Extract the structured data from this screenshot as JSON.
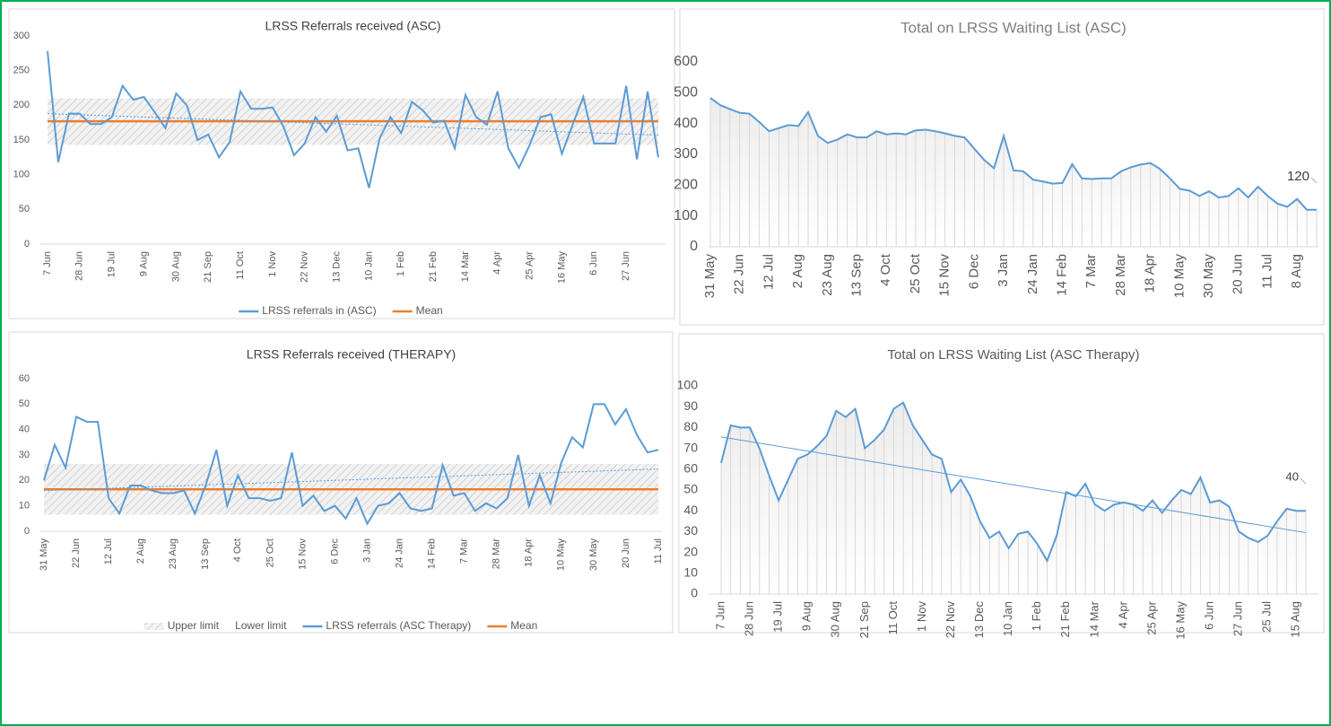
{
  "chart_data": [
    {
      "type": "line",
      "title": "LRSS Referrals received (ASC)",
      "categories": [
        "7 Jun",
        null,
        null,
        "28 Jun",
        null,
        null,
        "19 Jul",
        null,
        null,
        "9 Aug",
        null,
        null,
        "30 Aug",
        null,
        null,
        "21 Sep",
        null,
        null,
        "11 Oct",
        null,
        null,
        "1 Nov",
        null,
        null,
        "22 Nov",
        null,
        null,
        "13 Dec",
        null,
        null,
        "10 Jan",
        null,
        null,
        "1 Feb",
        null,
        null,
        "21 Feb",
        null,
        null,
        "14 Mar",
        null,
        null,
        "4 Apr",
        null,
        null,
        "25 Apr",
        null,
        null,
        "16 May",
        null,
        null,
        "6 Jun",
        null,
        null,
        "27 Jun",
        null,
        null,
        null
      ],
      "series": [
        {
          "name": "LRSS referrals in (ASC)",
          "color": "#5b9bd5",
          "values": [
            278,
            118,
            188,
            188,
            173,
            173,
            183,
            228,
            208,
            212,
            190,
            167,
            217,
            200,
            150,
            158,
            125,
            147,
            220,
            195,
            195,
            197,
            170,
            128,
            145,
            183,
            162,
            185,
            135,
            138,
            81,
            153,
            183,
            160,
            205,
            193,
            175,
            178,
            138,
            215,
            183,
            172,
            220,
            138,
            110,
            143,
            183,
            187,
            130,
            172,
            212,
            145,
            145,
            145,
            228,
            122,
            220,
            125
          ]
        }
      ],
      "mean": {
        "name": "Mean",
        "color": "#ed7d31",
        "value": 177
      },
      "band": [
        143,
        210
      ],
      "trendline": [
        188,
        157
      ],
      "trendline_style": "dotted",
      "ylim": [
        0,
        300
      ],
      "yticks": [
        0,
        50,
        100,
        150,
        200,
        250,
        300
      ],
      "legend": "bottom"
    },
    {
      "type": "line",
      "title": "Total on LRSS Waiting List (ASC)",
      "categories": [
        "31 May",
        null,
        null,
        "22 Jun",
        null,
        null,
        "12 Jul",
        null,
        null,
        "2 Aug",
        null,
        null,
        "23 Aug",
        null,
        null,
        "13 Sep",
        null,
        null,
        "4 Oct",
        null,
        null,
        "25 Oct",
        null,
        null,
        "15 Nov",
        null,
        null,
        "6 Dec",
        null,
        null,
        "3 Jan",
        null,
        null,
        "24 Jan",
        null,
        null,
        "14 Feb",
        null,
        null,
        "7 Mar",
        null,
        null,
        "28 Mar",
        null,
        null,
        "18 Apr",
        null,
        null,
        "10 May",
        null,
        null,
        "30 May",
        null,
        null,
        "20 Jun",
        null,
        null,
        "11 Jul",
        null,
        null,
        "8 Aug",
        null,
        null
      ],
      "series": [
        {
          "name": "Total on LRSS Waiting List (ASC)",
          "color": "#5b9bd5",
          "values": [
            483,
            460,
            447,
            435,
            432,
            405,
            375,
            385,
            395,
            392,
            437,
            360,
            337,
            348,
            365,
            355,
            355,
            375,
            365,
            368,
            365,
            378,
            380,
            375,
            368,
            360,
            355,
            318,
            282,
            255,
            360,
            248,
            245,
            218,
            212,
            205,
            207,
            268,
            222,
            220,
            222,
            222,
            245,
            258,
            267,
            272,
            252,
            222,
            188,
            182,
            165,
            180,
            160,
            165,
            190,
            160,
            195,
            165,
            140,
            130,
            155,
            120,
            120
          ]
        }
      ],
      "area": true,
      "data_label": "last",
      "ylim": [
        0,
        600
      ],
      "yticks": [
        0,
        100,
        200,
        300,
        400,
        500,
        600
      ]
    },
    {
      "type": "line",
      "title": "LRSS Referrals received (THERAPY)",
      "categories": [
        "31 May",
        null,
        null,
        "22 Jun",
        null,
        null,
        "12 Jul",
        null,
        null,
        "2 Aug",
        null,
        null,
        "23 Aug",
        null,
        null,
        "13 Sep",
        null,
        null,
        "4 Oct",
        null,
        null,
        "25 Oct",
        null,
        null,
        "15 Nov",
        null,
        null,
        "6 Dec",
        null,
        null,
        "3 Jan",
        null,
        null,
        "24 Jan",
        null,
        null,
        "14 Feb",
        null,
        null,
        "7 Mar",
        null,
        null,
        "28 Mar",
        null,
        null,
        "18 Apr",
        null,
        null,
        "10 May",
        null,
        null,
        "30 May",
        null,
        null,
        "20 Jun",
        null,
        null,
        "11 Jul"
      ],
      "series": [
        {
          "name": "LRSS referrals (ASC Therapy)",
          "color": "#5b9bd5",
          "values": [
            20,
            34,
            25,
            45,
            43,
            43,
            13,
            7,
            18,
            18,
            16,
            15,
            15,
            16,
            7,
            18,
            32,
            10,
            22,
            13,
            13,
            12,
            13,
            31,
            10,
            14,
            8,
            10,
            5,
            13,
            3,
            10,
            11,
            15,
            9,
            8,
            9,
            26,
            14,
            15,
            8,
            11,
            9,
            13,
            30,
            10,
            22,
            11,
            27,
            37,
            33,
            50,
            50,
            42,
            48,
            38,
            31,
            32
          ]
        }
      ],
      "mean": {
        "name": "Mean",
        "color": "#ed7d31",
        "value": 16.5
      },
      "band": [
        6.5,
        26.5
      ],
      "band_legend": [
        "Upper limit",
        "Lower limit"
      ],
      "trendline": [
        16,
        24.5
      ],
      "trendline_style": "dotted",
      "ylim": [
        0,
        60
      ],
      "yticks": [
        0,
        10,
        20,
        30,
        40,
        50,
        60
      ],
      "legend": "bottom"
    },
    {
      "type": "line",
      "title": "Total on LRSS Waiting List (ASC Therapy)",
      "categories": [
        "7 Jun",
        null,
        null,
        "28 Jun",
        null,
        null,
        "19 Jul",
        null,
        null,
        "9 Aug",
        null,
        null,
        "30 Aug",
        null,
        null,
        "21 Sep",
        null,
        null,
        "11 Oct",
        null,
        null,
        "1 Nov",
        null,
        null,
        "22 Nov",
        null,
        null,
        "13 Dec",
        null,
        null,
        "10 Jan",
        null,
        null,
        "1 Feb",
        null,
        null,
        "21 Feb",
        null,
        null,
        "14 Mar",
        null,
        null,
        "4 Apr",
        null,
        null,
        "25 Apr",
        null,
        null,
        "16 May",
        null,
        null,
        "6 Jun",
        null,
        null,
        "27 Jun",
        null,
        null,
        "25 Jul",
        null,
        null,
        "15 Aug",
        null
      ],
      "series": [
        {
          "name": "Total on LRSS Waiting List (ASC Therapy)",
          "color": "#5b9bd5",
          "values": [
            63,
            81,
            80,
            80,
            70,
            57,
            45,
            55,
            65,
            67,
            71,
            76,
            88,
            85,
            89,
            70,
            74,
            79,
            89,
            92,
            81,
            74,
            67,
            65,
            49,
            55,
            47,
            35,
            27,
            30,
            22,
            29,
            30,
            24,
            16,
            28,
            49,
            47,
            53,
            43,
            40,
            43,
            44,
            43,
            40,
            45,
            39,
            45,
            50,
            48,
            56,
            44,
            45,
            42,
            30,
            27,
            25,
            28,
            35,
            41,
            40,
            40
          ]
        }
      ],
      "area": true,
      "data_label": "last",
      "trendline": [
        75.5,
        29.5
      ],
      "trendline_style": "solid",
      "ylim": [
        0,
        100
      ],
      "yticks": [
        0,
        10,
        20,
        30,
        40,
        50,
        60,
        70,
        80,
        90,
        100
      ]
    }
  ]
}
